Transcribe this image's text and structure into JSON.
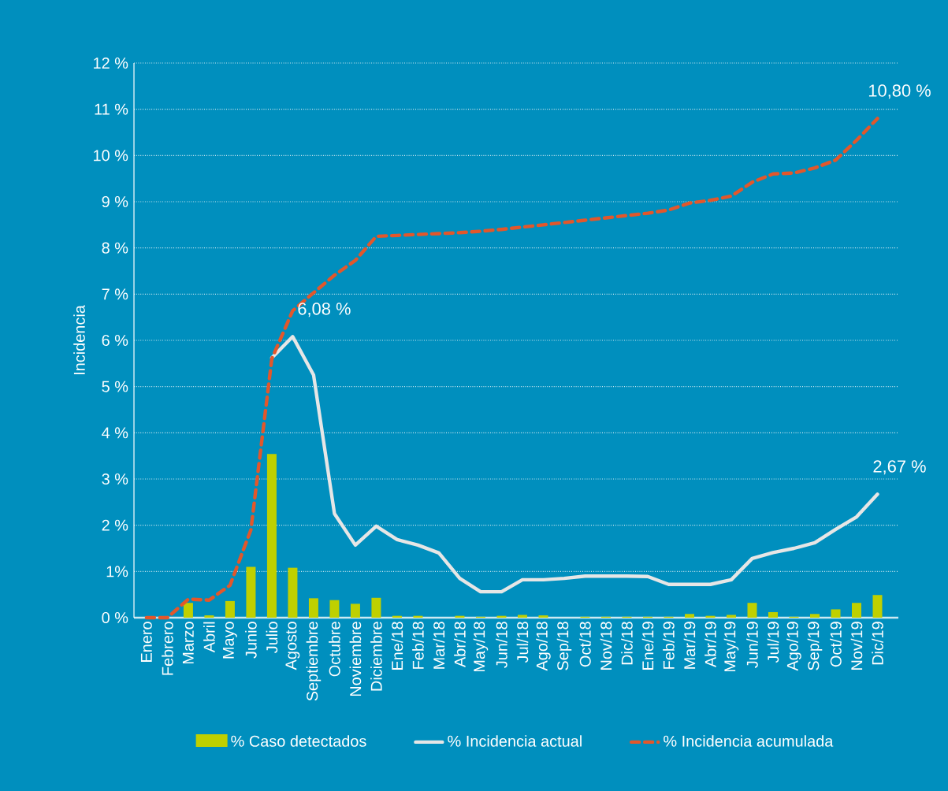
{
  "chart_data": {
    "type": "bar",
    "ylabel": "Incidencia",
    "categories": [
      "Enero",
      "Febrero",
      "Marzo",
      "Abril",
      "Mayo",
      "Junio",
      "Julio",
      "Agosto",
      "Septiembre",
      "Octubre",
      "Noviembre",
      "Diciembre",
      "Ene/18",
      "Feb/18",
      "Mar/18",
      "Abr/18",
      "May/18",
      "Jun/18",
      "Jul/18",
      "Ago/18",
      "Sep/18",
      "Oct/18",
      "Nov/18",
      "Dic/18",
      "Ene/19",
      "Feb/19",
      "Mar/19",
      "Abr/19",
      "May/19",
      "Jun/19",
      "Jul/19",
      "Ago/19",
      "Sep/19",
      "Oct/19",
      "Nov/19",
      "Dic/19"
    ],
    "series": [
      {
        "name": "% Caso detectados",
        "color": "#bfd000",
        "values": [
          0,
          0,
          0.32,
          0.05,
          0.36,
          1.1,
          3.54,
          1.08,
          0.42,
          0.38,
          0.3,
          0.43,
          0.04,
          0.04,
          0,
          0.04,
          0.02,
          0.04,
          0.06,
          0.05,
          0,
          0.02,
          0.02,
          0.02,
          0.02,
          0.02,
          0.08,
          0.04,
          0.06,
          0.32,
          0.12,
          0.02,
          0.08,
          0.18,
          0.32,
          0.49
        ]
      },
      {
        "name": "% Incidencia actual",
        "type": "line",
        "line_style": "solid",
        "color": "#e6e6e6",
        "values": [
          null,
          null,
          null,
          null,
          null,
          null,
          5.62,
          6.08,
          5.25,
          2.25,
          1.57,
          1.98,
          1.69,
          1.57,
          1.4,
          0.85,
          0.56,
          0.56,
          0.82,
          0.82,
          0.85,
          0.9,
          0.9,
          0.9,
          0.89,
          0.72,
          0.72,
          0.72,
          0.82,
          1.28,
          1.41,
          1.5,
          1.62,
          1.91,
          2.18,
          2.67
        ]
      },
      {
        "name": "% Incidencia acumulada",
        "type": "line",
        "line_style": "dashed",
        "color": "#e2572b",
        "values": [
          0,
          0,
          0.4,
          0.38,
          0.7,
          1.9,
          5.6,
          6.64,
          7.03,
          7.41,
          7.73,
          8.25,
          8.27,
          8.29,
          8.31,
          8.33,
          8.36,
          8.4,
          8.45,
          8.5,
          8.55,
          8.6,
          8.65,
          8.7,
          8.75,
          8.82,
          8.97,
          9.03,
          9.12,
          9.42,
          9.6,
          9.62,
          9.73,
          9.9,
          10.33,
          10.8
        ]
      }
    ],
    "ylim": [
      0,
      12
    ],
    "yticks": [
      {
        "value": 0,
        "label": "0 %"
      },
      {
        "value": 1,
        "label": "1%"
      },
      {
        "value": 2,
        "label": "2 %"
      },
      {
        "value": 3,
        "label": "3 %"
      },
      {
        "value": 4,
        "label": "4 %"
      },
      {
        "value": 5,
        "label": "5 %"
      },
      {
        "value": 6,
        "label": "6 %"
      },
      {
        "value": 7,
        "label": "7 %"
      },
      {
        "value": 8,
        "label": "8 %"
      },
      {
        "value": 9,
        "label": "9 %"
      },
      {
        "value": 10,
        "label": "10 %"
      },
      {
        "value": 11,
        "label": "11 %"
      },
      {
        "value": 12,
        "label": "12 %"
      }
    ],
    "annotations": [
      {
        "text": "6,08 %",
        "x": "Agosto",
        "y": 6.08
      },
      {
        "text": "10,80 %",
        "x": "Dic/19",
        "y": 10.8
      },
      {
        "text": "2,67 %",
        "x": "Dic/19",
        "y": 2.67
      }
    ],
    "grid": "y",
    "legend": "bottom",
    "marker": "none"
  }
}
